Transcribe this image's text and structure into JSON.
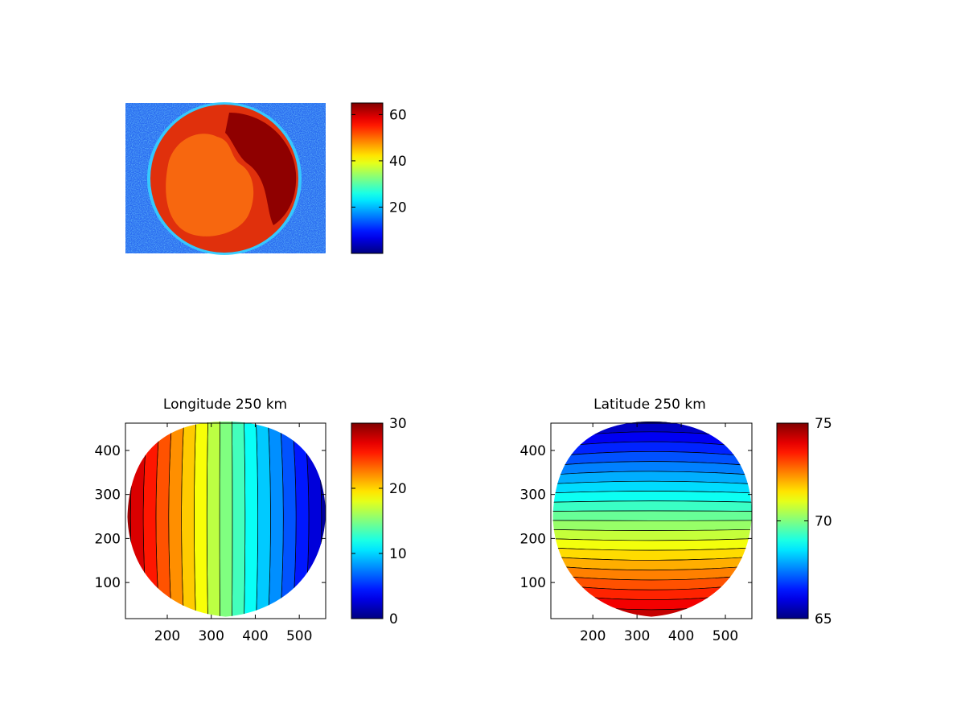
{
  "chart_data": [
    {
      "type": "heatmap",
      "title": "",
      "description": "image",
      "axes_visible": false,
      "colormap": "jet",
      "colorbar": {
        "min": 0,
        "max": 65,
        "ticks": [
          20,
          40,
          60
        ]
      }
    },
    {
      "type": "heatmap",
      "title": "Longitude 250 km",
      "xlim": [
        105,
        560
      ],
      "ylim": [
        18,
        462
      ],
      "xticks": [
        200,
        300,
        400,
        500
      ],
      "yticks": [
        100,
        200,
        300,
        400
      ],
      "colormap": "jet",
      "colorbar": {
        "min": 0,
        "max": 30,
        "ticks": [
          0,
          10,
          20,
          30
        ]
      },
      "contour_levels": 17,
      "gradient": "horizontal",
      "range": [
        0,
        30
      ]
    },
    {
      "type": "heatmap",
      "title": "Latitude 250 km",
      "xlim": [
        105,
        560
      ],
      "ylim": [
        18,
        462
      ],
      "xticks": [
        200,
        300,
        400,
        500
      ],
      "yticks": [
        100,
        200,
        300,
        400
      ],
      "colormap": "jet",
      "colorbar": {
        "min": 65,
        "max": 75,
        "ticks": [
          65,
          70,
          75
        ]
      },
      "contour_levels": 22,
      "gradient": "vertical",
      "range": [
        65,
        75
      ]
    }
  ]
}
